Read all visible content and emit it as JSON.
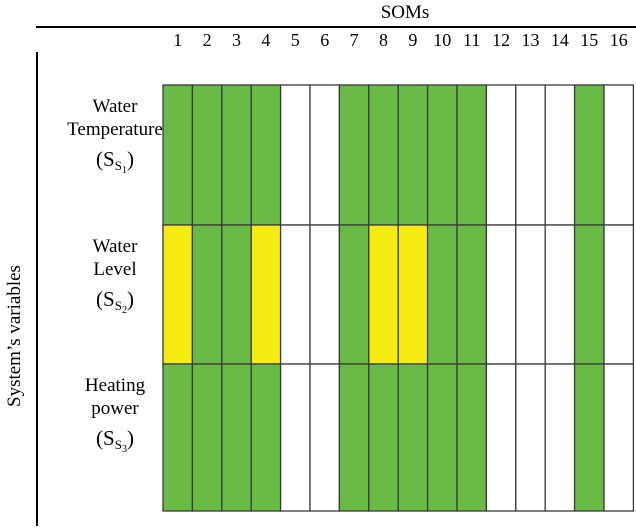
{
  "header": {
    "title": "SOMs"
  },
  "y_axis": {
    "title": "System’s variables"
  },
  "soms": [
    "1",
    "2",
    "3",
    "4",
    "5",
    "6",
    "7",
    "8",
    "9",
    "10",
    "11",
    "12",
    "13",
    "14",
    "15",
    "16"
  ],
  "colors": {
    "green": "#6abb46",
    "yellow": "#f6ec14",
    "white": "#ffffff",
    "border": "#3a3a3a"
  },
  "rows": [
    {
      "label_line1": "Water",
      "label_line2": "Temperature",
      "symbol_base": "S",
      "symbol_sub": "S",
      "symbol_subsub": "1",
      "cells": [
        "green",
        "green",
        "green",
        "green",
        "white",
        "white",
        "green",
        "green",
        "green",
        "green",
        "green",
        "white",
        "white",
        "white",
        "green",
        "white"
      ]
    },
    {
      "label_line1": "Water",
      "label_line2": "Level",
      "symbol_base": "S",
      "symbol_sub": "S",
      "symbol_subsub": "2",
      "cells": [
        "yellow",
        "green",
        "green",
        "yellow",
        "white",
        "white",
        "green",
        "yellow",
        "yellow",
        "green",
        "green",
        "white",
        "white",
        "white",
        "green",
        "white"
      ]
    },
    {
      "label_line1": "Heating",
      "label_line2": "power",
      "symbol_base": "S",
      "symbol_sub": "S",
      "symbol_subsub": "3",
      "cells": [
        "green",
        "green",
        "green",
        "green",
        "white",
        "white",
        "green",
        "green",
        "green",
        "green",
        "green",
        "white",
        "white",
        "white",
        "green",
        "white"
      ]
    }
  ]
}
